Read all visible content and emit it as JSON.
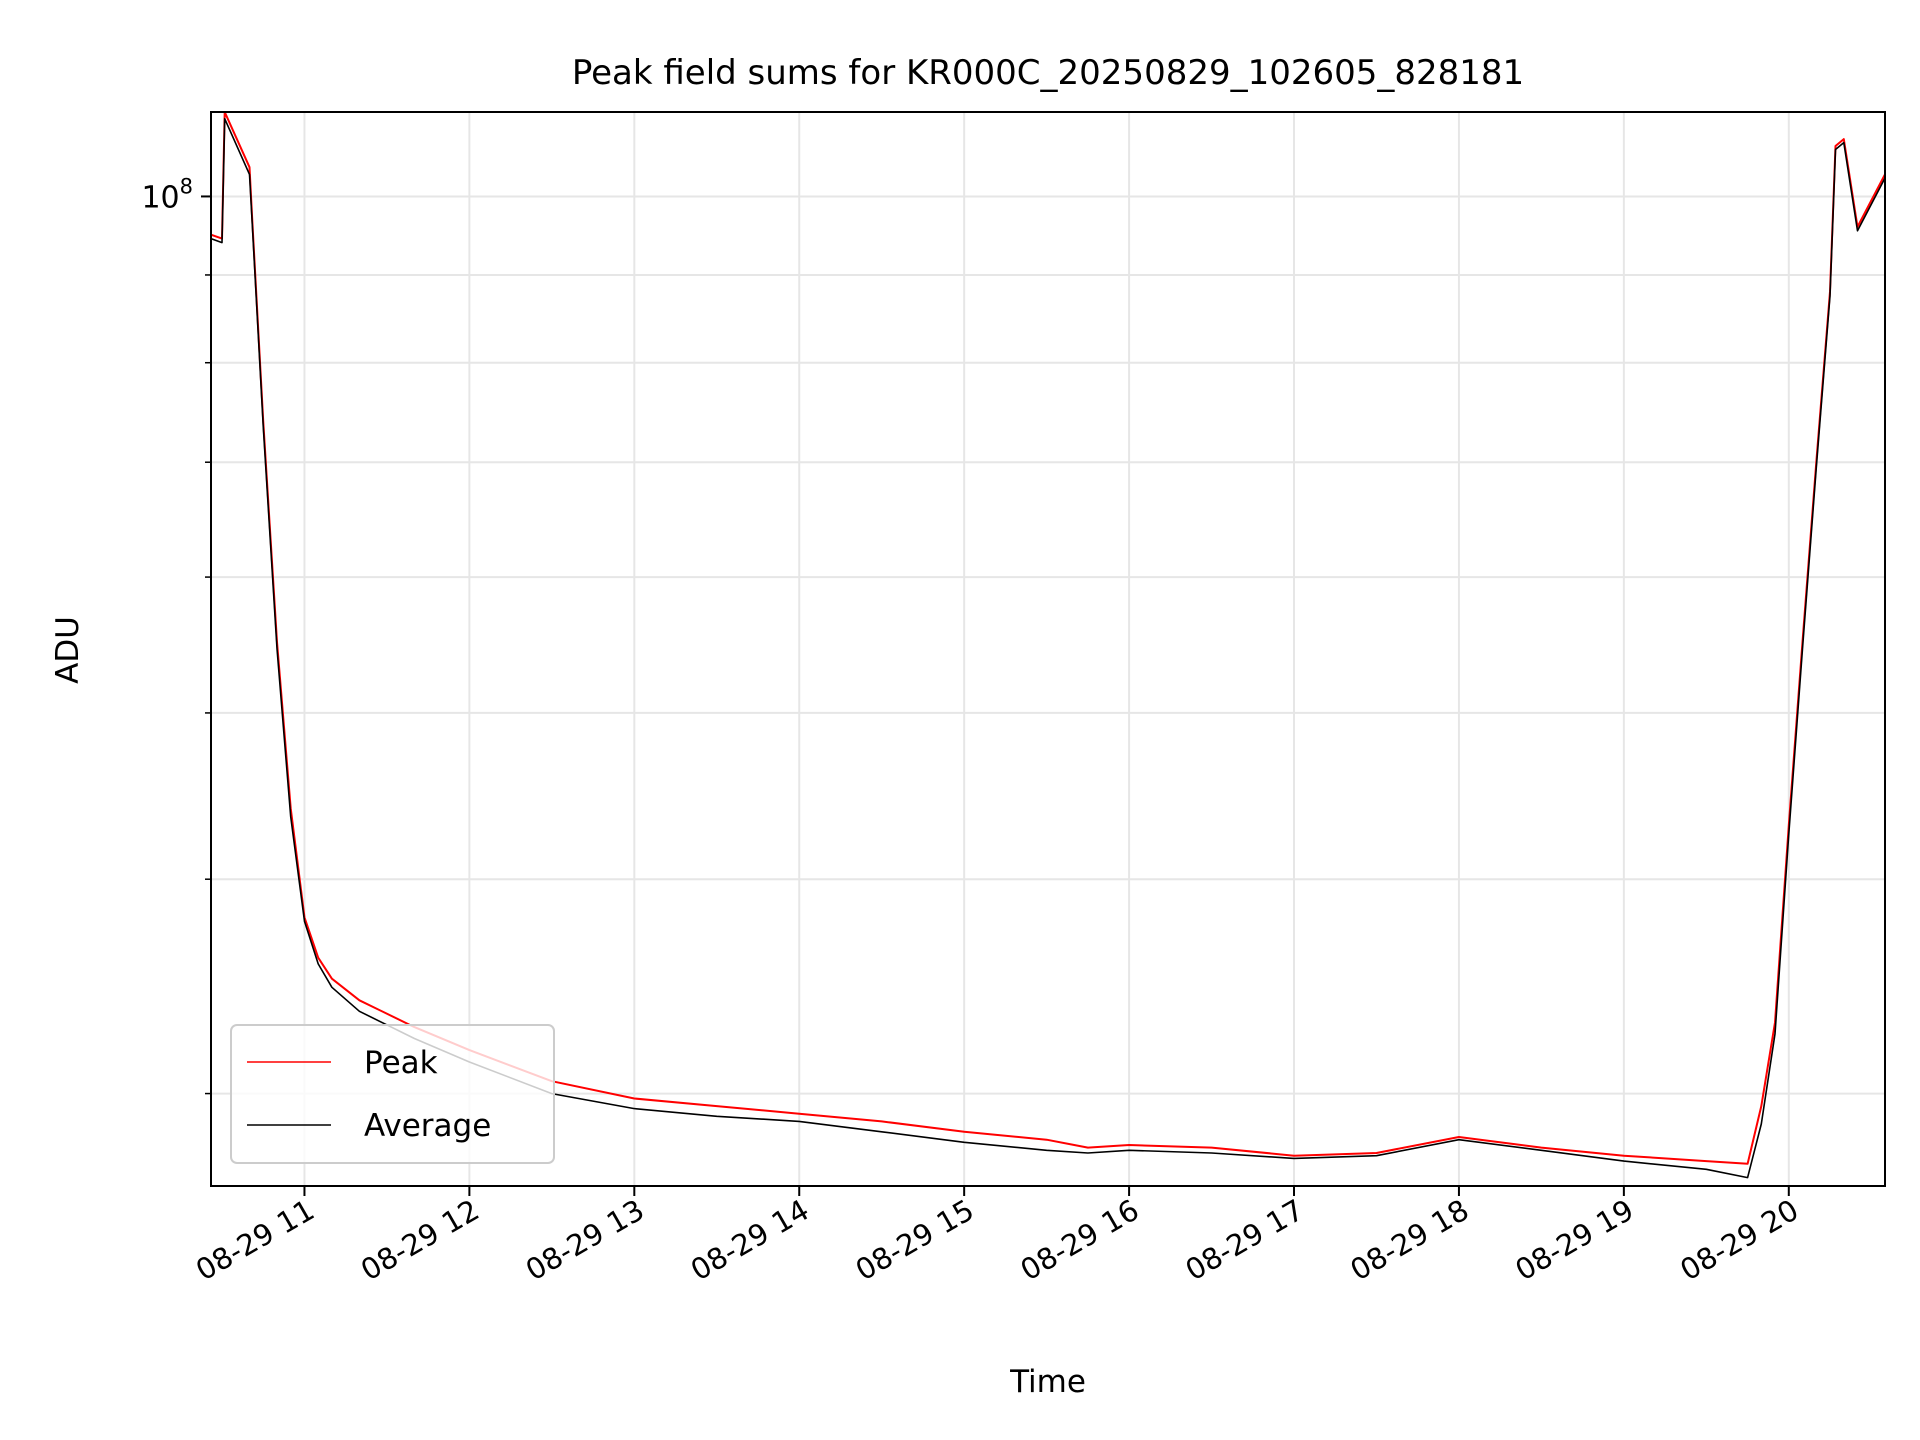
{
  "chart_data": {
    "type": "line",
    "title": "Peak field sums for KR000C_20250829_102605_828181",
    "xlabel": "Time",
    "ylabel": "ADU",
    "yscale": "log",
    "grid": true,
    "legend_position": "lower-left",
    "x_tick_labels": [
      "08-29 11",
      "08-29 12",
      "08-29 13",
      "08-29 14",
      "08-29 15",
      "08-29 16",
      "08-29 17",
      "08-29 18",
      "08-29 19",
      "08-29 20"
    ],
    "x_ticks": [
      "2025-08-29T11:00",
      "2025-08-29T12:00",
      "2025-08-29T13:00",
      "2025-08-29T14:00",
      "2025-08-29T15:00",
      "2025-08-29T16:00",
      "2025-08-29T17:00",
      "2025-08-29T18:00",
      "2025-08-29T19:00",
      "2025-08-29T20:00"
    ],
    "xlim": [
      "2025-08-29T10:26",
      "2025-08-29T20:35"
    ],
    "y_major_tick_label": {
      "base": "10",
      "exponent": "8"
    },
    "y_major_tick_value": 100000000,
    "y_minor_tick_values": [
      30000000,
      40000000,
      50000000,
      60000000,
      70000000,
      80000000,
      90000000
    ],
    "ylim": [
      26500000,
      112000000
    ],
    "series": [
      {
        "name": "Peak",
        "color": "#ff0000",
        "x": [
          "2025-08-29T10:26",
          "2025-08-29T10:30",
          "2025-08-29T10:31",
          "2025-08-29T10:40",
          "2025-08-29T10:41",
          "2025-08-29T10:45",
          "2025-08-29T10:50",
          "2025-08-29T10:55",
          "2025-08-29T11:00",
          "2025-08-29T11:05",
          "2025-08-29T11:10",
          "2025-08-29T11:20",
          "2025-08-29T11:40",
          "2025-08-29T12:00",
          "2025-08-29T12:30",
          "2025-08-29T13:00",
          "2025-08-29T13:30",
          "2025-08-29T14:00",
          "2025-08-29T14:30",
          "2025-08-29T15:00",
          "2025-08-29T15:30",
          "2025-08-29T15:45",
          "2025-08-29T16:00",
          "2025-08-29T16:30",
          "2025-08-29T17:00",
          "2025-08-29T17:30",
          "2025-08-29T18:00",
          "2025-08-29T18:30",
          "2025-08-29T19:00",
          "2025-08-29T19:30",
          "2025-08-29T19:45",
          "2025-08-29T19:50",
          "2025-08-29T19:55",
          "2025-08-29T20:00",
          "2025-08-29T20:05",
          "2025-08-29T20:10",
          "2025-08-29T20:15",
          "2025-08-29T20:17",
          "2025-08-29T20:20",
          "2025-08-29T20:25",
          "2025-08-29T20:35"
        ],
        "y": [
          95000000,
          94500000,
          112000000,
          104000000,
          97000000,
          74000000,
          55000000,
          44000000,
          38000000,
          36000000,
          35000000,
          34000000,
          32800000,
          31800000,
          30500000,
          29800000,
          29500000,
          29200000,
          28900000,
          28500000,
          28200000,
          27900000,
          28000000,
          27900000,
          27600000,
          27700000,
          28300000,
          27900000,
          27600000,
          27400000,
          27300000,
          29500000,
          33000000,
          43000000,
          55000000,
          70000000,
          88000000,
          107000000,
          108000000,
          96000000,
          103000000
        ]
      },
      {
        "name": "Average",
        "color": "#000000",
        "x": [
          "2025-08-29T10:26",
          "2025-08-29T10:30",
          "2025-08-29T10:31",
          "2025-08-29T10:40",
          "2025-08-29T10:41",
          "2025-08-29T10:45",
          "2025-08-29T10:50",
          "2025-08-29T10:55",
          "2025-08-29T11:00",
          "2025-08-29T11:05",
          "2025-08-29T11:10",
          "2025-08-29T11:20",
          "2025-08-29T11:40",
          "2025-08-29T12:00",
          "2025-08-29T12:30",
          "2025-08-29T13:00",
          "2025-08-29T13:30",
          "2025-08-29T14:00",
          "2025-08-29T14:30",
          "2025-08-29T15:00",
          "2025-08-29T15:30",
          "2025-08-29T15:45",
          "2025-08-29T16:00",
          "2025-08-29T16:30",
          "2025-08-29T17:00",
          "2025-08-29T17:30",
          "2025-08-29T18:00",
          "2025-08-29T18:30",
          "2025-08-29T19:00",
          "2025-08-29T19:30",
          "2025-08-29T19:45",
          "2025-08-29T19:50",
          "2025-08-29T19:55",
          "2025-08-29T20:00",
          "2025-08-29T20:05",
          "2025-08-29T20:10",
          "2025-08-29T20:15",
          "2025-08-29T20:17",
          "2025-08-29T20:20",
          "2025-08-29T20:25",
          "2025-08-29T20:35"
        ],
        "y": [
          94500000,
          94000000,
          111000000,
          103000000,
          96500000,
          73500000,
          54500000,
          43500000,
          37800000,
          35700000,
          34600000,
          33500000,
          32300000,
          31300000,
          30000000,
          29400000,
          29100000,
          28900000,
          28500000,
          28100000,
          27800000,
          27700000,
          27800000,
          27700000,
          27500000,
          27600000,
          28200000,
          27800000,
          27400000,
          27100000,
          26800000,
          28800000,
          32500000,
          42500000,
          54500000,
          69500000,
          87500000,
          106500000,
          107500000,
          95500000,
          102500000
        ]
      }
    ],
    "annotations": []
  }
}
